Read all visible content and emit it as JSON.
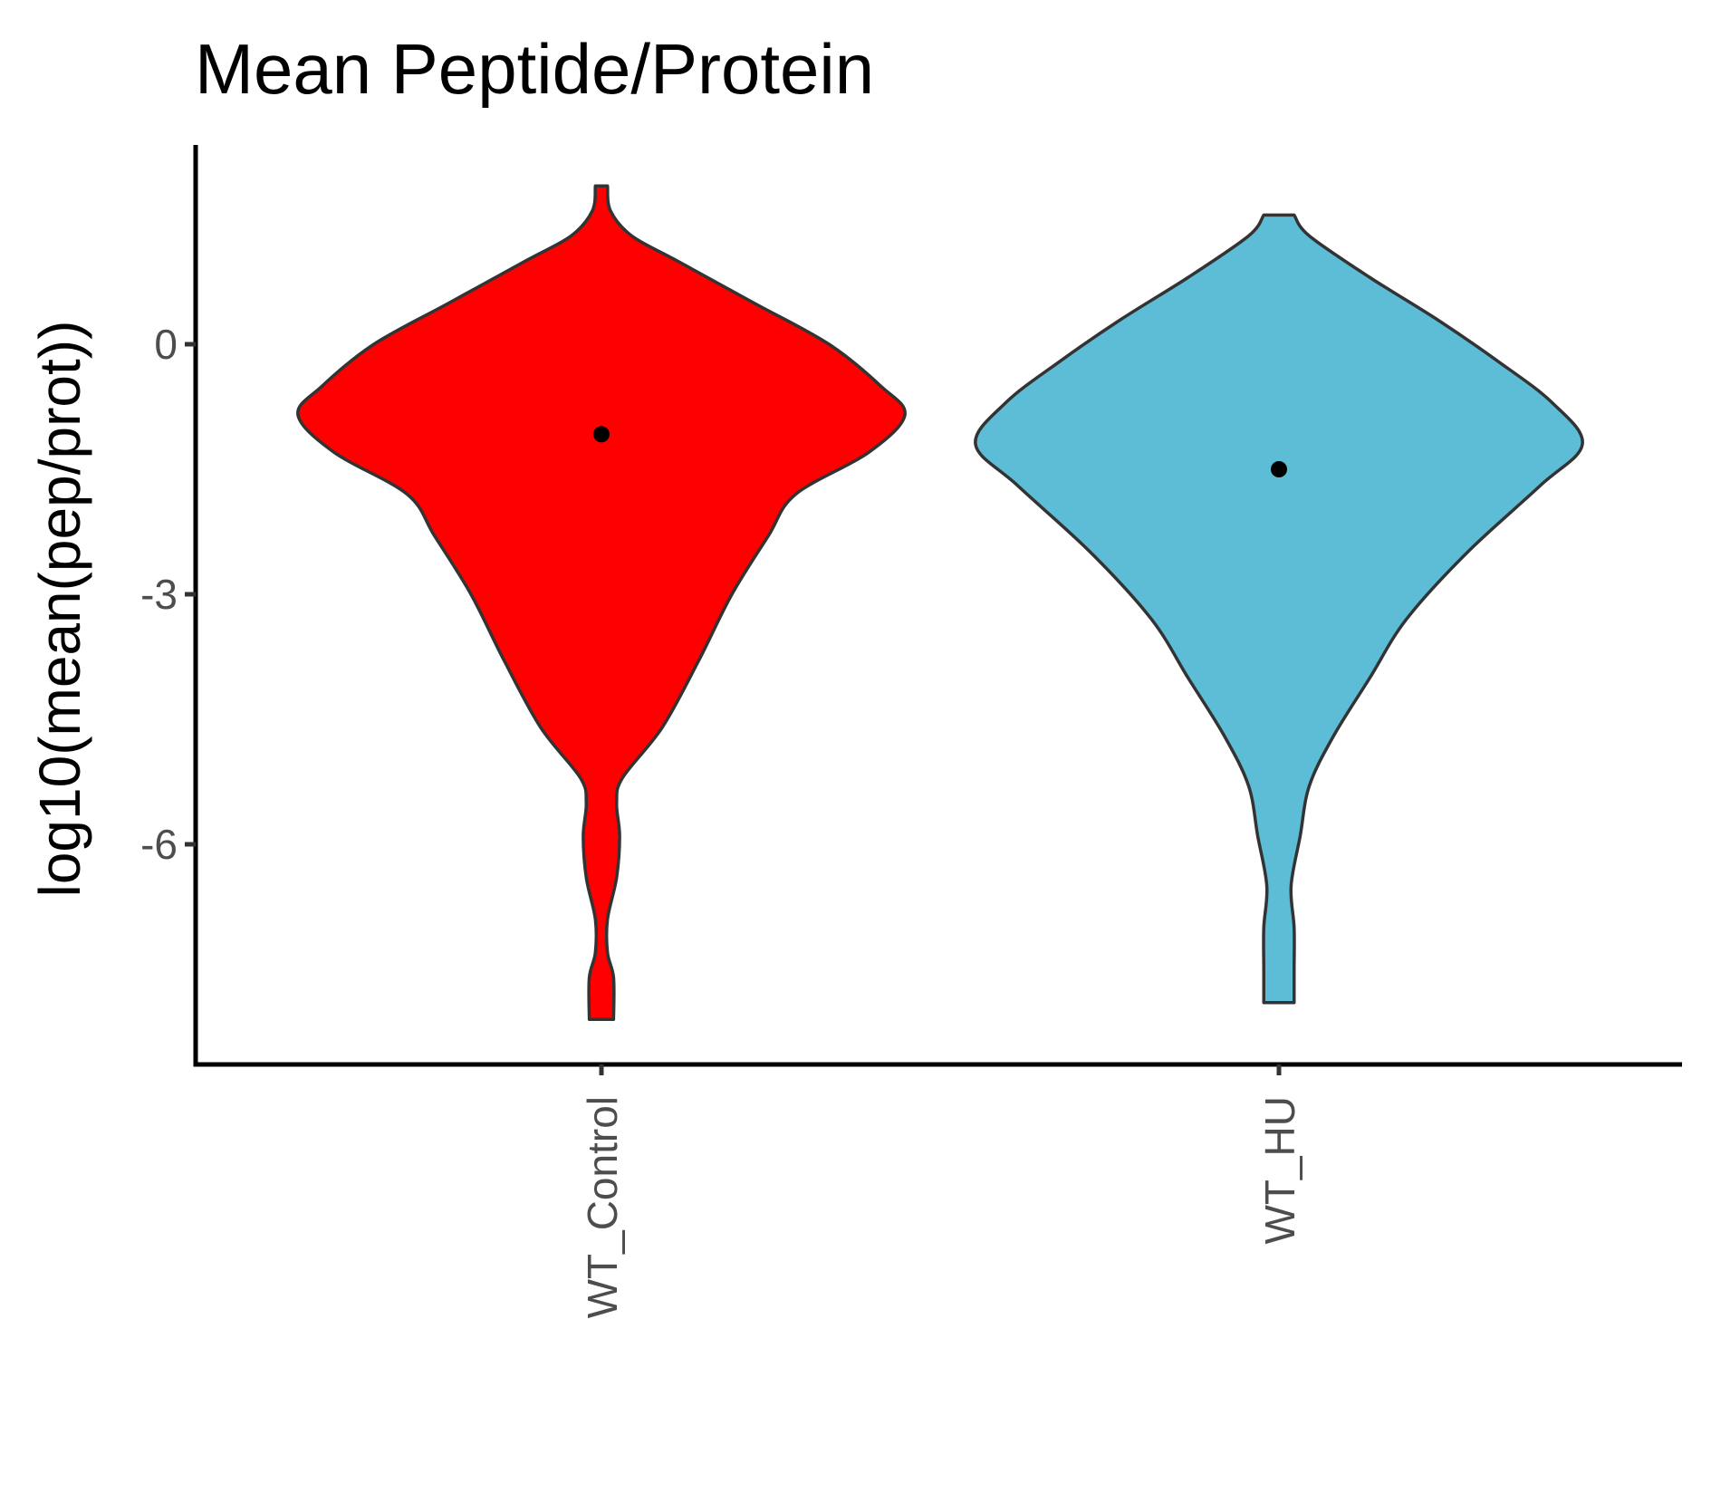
{
  "chart_data": {
    "type": "violin",
    "title": "Mean Peptide/Protein",
    "xlabel": "",
    "ylabel": "log10(mean(pep/prot))",
    "ylim": [
      -8.6,
      2.4
    ],
    "yticks": [
      0,
      -3,
      -6
    ],
    "ytick_labels": [
      "0",
      "-3",
      "-6"
    ],
    "grid": false,
    "legend": "none",
    "categories": [
      "WT_Control",
      "WT_HU"
    ],
    "series": [
      {
        "category": "WT_Control",
        "color": "#FF0000",
        "mean": -1.08,
        "range": [
          -8.1,
          1.9
        ],
        "density": [
          [
            1.9,
            0.02
          ],
          [
            1.6,
            0.03
          ],
          [
            1.3,
            0.1
          ],
          [
            1.0,
            0.25
          ],
          [
            0.5,
            0.5
          ],
          [
            0.0,
            0.75
          ],
          [
            -0.5,
            0.92
          ],
          [
            -0.85,
            1.0
          ],
          [
            -1.3,
            0.88
          ],
          [
            -1.8,
            0.64
          ],
          [
            -2.3,
            0.55
          ],
          [
            -3.0,
            0.43
          ],
          [
            -3.8,
            0.32
          ],
          [
            -4.6,
            0.2
          ],
          [
            -5.2,
            0.07
          ],
          [
            -5.5,
            0.05
          ],
          [
            -5.9,
            0.06
          ],
          [
            -6.4,
            0.05
          ],
          [
            -6.9,
            0.02
          ],
          [
            -7.3,
            0.02
          ],
          [
            -7.6,
            0.04
          ],
          [
            -8.1,
            0.04
          ]
        ]
      },
      {
        "category": "WT_HU",
        "color": "#5DBCD6",
        "mean": -1.5,
        "range": [
          -7.9,
          1.55
        ],
        "density": [
          [
            1.55,
            0.05
          ],
          [
            1.3,
            0.1
          ],
          [
            0.8,
            0.3
          ],
          [
            0.3,
            0.52
          ],
          [
            -0.2,
            0.72
          ],
          [
            -0.7,
            0.9
          ],
          [
            -1.2,
            1.0
          ],
          [
            -1.7,
            0.86
          ],
          [
            -2.5,
            0.62
          ],
          [
            -3.3,
            0.42
          ],
          [
            -4.0,
            0.3
          ],
          [
            -4.7,
            0.18
          ],
          [
            -5.3,
            0.1
          ],
          [
            -5.9,
            0.07
          ],
          [
            -6.5,
            0.04
          ],
          [
            -7.0,
            0.05
          ],
          [
            -7.5,
            0.05
          ],
          [
            -7.9,
            0.05
          ]
        ]
      }
    ]
  }
}
